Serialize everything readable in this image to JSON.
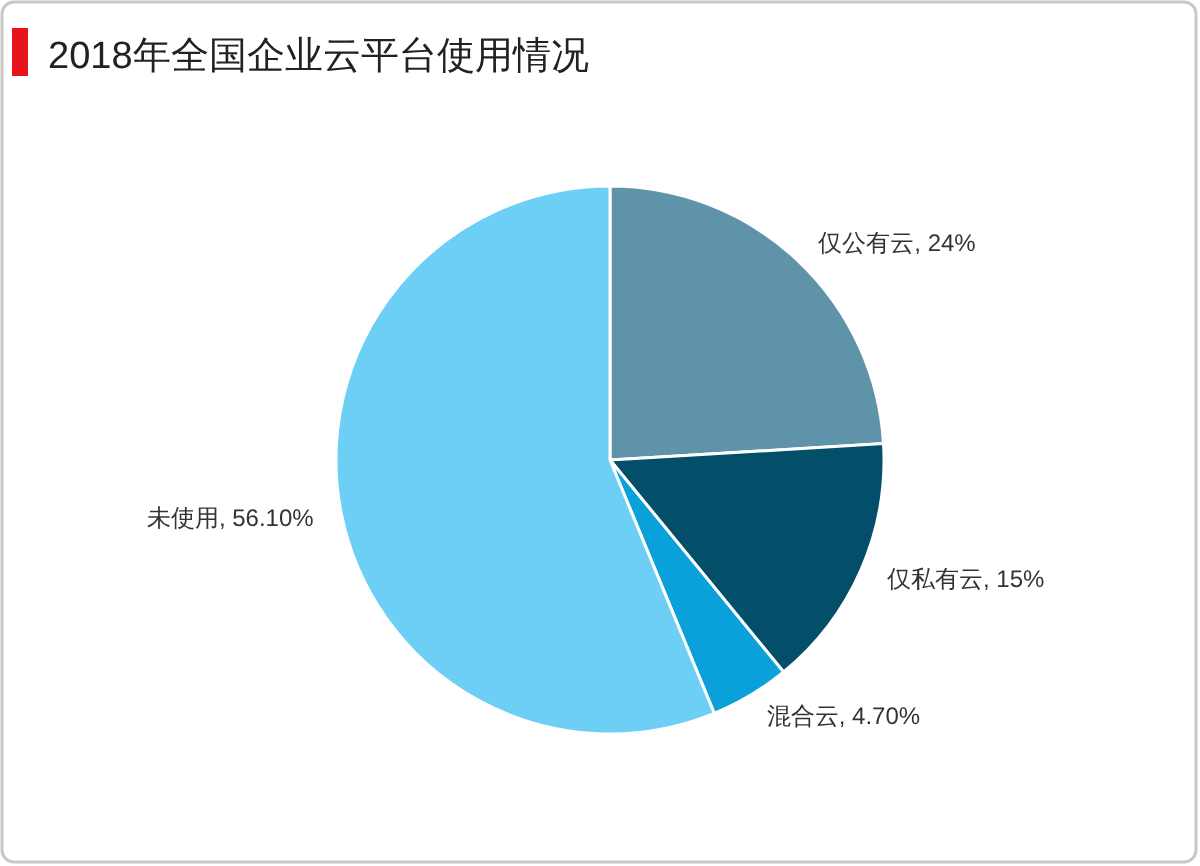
{
  "chart_data": {
    "type": "pie",
    "title": "2018年全国企业云平台使用情况",
    "categories": [
      "仅公有云",
      "仅私有云",
      "混合云",
      "未使用"
    ],
    "values": [
      24,
      15,
      4.7,
      56.1
    ],
    "value_labels": [
      "24%",
      "15%",
      "4.70%",
      "56.10%"
    ],
    "colors": [
      "#5f93a9",
      "#034f6a",
      "#0aa0d9",
      "#6dcff5"
    ]
  }
}
